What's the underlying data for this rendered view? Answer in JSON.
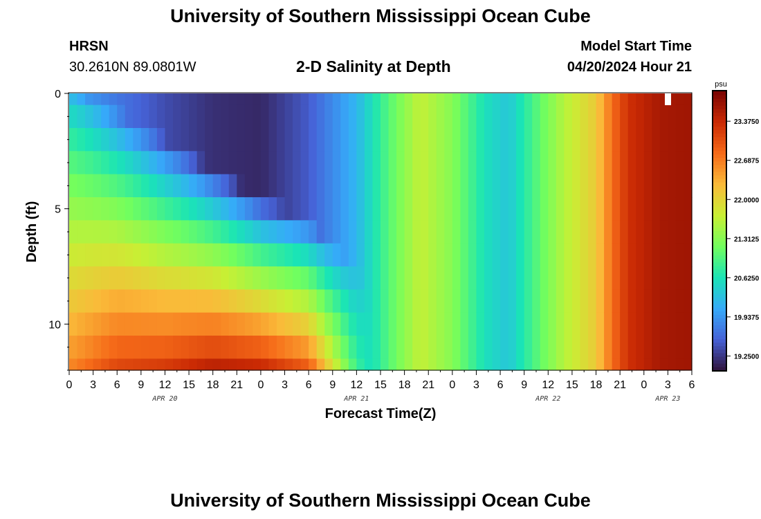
{
  "header": {
    "title": "University of Southern Mississippi Ocean Cube",
    "station": "HRSN",
    "coords": "30.2610N  89.0801W",
    "plot_title": "2-D Salinity at Depth",
    "model_start_label": "Model Start Time",
    "model_start_value": "04/20/2024 Hour 21"
  },
  "footer": {
    "title": "University of Southern Mississippi Ocean Cube"
  },
  "colors": {
    "colormap": [
      "#30123b",
      "#4662d7",
      "#36aaf9",
      "#1ae4b6",
      "#72fe5e",
      "#c8ef34",
      "#faba39",
      "#f66b19",
      "#ca2a04",
      "#7a0403"
    ]
  },
  "chart_data": {
    "type": "heatmap",
    "xlabel": "Forecast Time(Z)",
    "ylabel": "Depth (ft)",
    "x_tick_labels": [
      "0",
      "3",
      "6",
      "9",
      "12",
      "15",
      "18",
      "21",
      "0",
      "3",
      "6",
      "9",
      "12",
      "15",
      "18",
      "21",
      "0",
      "3",
      "6",
      "9",
      "12",
      "15",
      "18",
      "21",
      "0",
      "3",
      "6"
    ],
    "y_tick_labels": [
      "0",
      "5",
      "10"
    ],
    "yticks": [
      0,
      5,
      10
    ],
    "ylim": [
      0,
      12
    ],
    "date_labels": [
      {
        "label": "APR 20",
        "at_hour": 12
      },
      {
        "label": "APR 21",
        "at_hour": 36
      },
      {
        "label": "APR 22",
        "at_hour": 60
      },
      {
        "label": "APR 23",
        "at_hour": 75
      }
    ],
    "x_range_hours": [
      0,
      78
    ],
    "colorbar": {
      "unit": "psu",
      "tick_labels": [
        "23.3750",
        "22.6875",
        "22.0000",
        "21.3125",
        "20.6250",
        "19.9375",
        "19.2500"
      ],
      "ticks": [
        23.375,
        22.6875,
        22.0,
        21.3125,
        20.625,
        19.9375,
        19.25
      ],
      "range": [
        19.0,
        23.9
      ]
    },
    "depth_levels": [
      0,
      1,
      2,
      3,
      4,
      5,
      6,
      7,
      8,
      9,
      10,
      11,
      12
    ],
    "surface_salinity_keyframes": [
      {
        "hour": 0,
        "psu": 20.1
      },
      {
        "hour": 6,
        "psu": 19.7
      },
      {
        "hour": 12,
        "psu": 19.4
      },
      {
        "hour": 18,
        "psu": 19.2
      },
      {
        "hour": 24,
        "psu": 19.15
      },
      {
        "hour": 30,
        "psu": 19.5
      },
      {
        "hour": 36,
        "psu": 20.2
      },
      {
        "hour": 40,
        "psu": 21.0
      },
      {
        "hour": 44,
        "psu": 21.7
      },
      {
        "hour": 48,
        "psu": 21.3
      },
      {
        "hour": 52,
        "psu": 20.6
      },
      {
        "hour": 55,
        "psu": 20.35
      },
      {
        "hour": 58,
        "psu": 20.9
      },
      {
        "hour": 62,
        "psu": 21.6
      },
      {
        "hour": 66,
        "psu": 22.1
      },
      {
        "hour": 68,
        "psu": 22.8
      },
      {
        "hour": 70,
        "psu": 23.3
      },
      {
        "hour": 74,
        "psu": 23.6
      },
      {
        "hour": 78,
        "psu": 23.65
      }
    ],
    "bottom_salinity_keyframes": [
      {
        "hour": 0,
        "psu": 22.6
      },
      {
        "hour": 6,
        "psu": 23.1
      },
      {
        "hour": 12,
        "psu": 23.2
      },
      {
        "hour": 18,
        "psu": 23.45
      },
      {
        "hour": 24,
        "psu": 23.35
      },
      {
        "hour": 30,
        "psu": 22.9
      },
      {
        "hour": 32,
        "psu": 22.2
      },
      {
        "hour": 34,
        "psu": 21.5
      }
    ],
    "halocline_depth_keyframes": [
      {
        "hour": 0,
        "depth_ft": 3.0
      },
      {
        "hour": 12,
        "depth_ft": 5.5
      },
      {
        "hour": 24,
        "depth_ft": 8.0
      },
      {
        "hour": 30,
        "depth_ft": 9.0
      },
      {
        "hour": 36,
        "depth_ft": 11.0
      },
      {
        "hour": 38,
        "depth_ft": 12.0
      }
    ]
  }
}
